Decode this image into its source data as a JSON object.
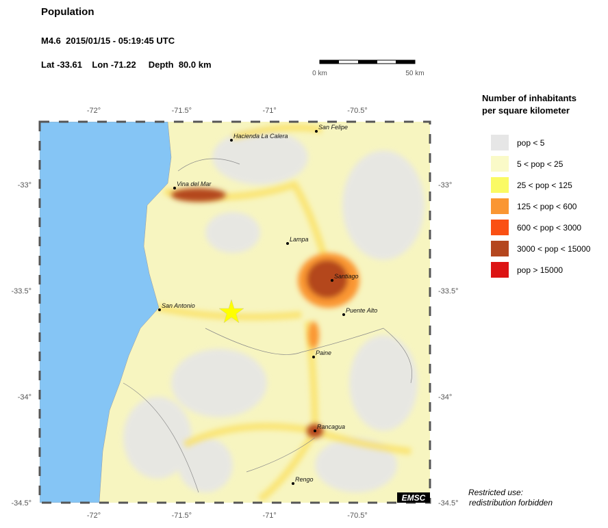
{
  "header": {
    "title": "Population",
    "event": "M4.6  2015/01/15 - 05:19:45 UTC",
    "location": "Lat -33.61    Lon -71.22     Depth  80.0 km"
  },
  "scale": {
    "start": "0 km",
    "end": "50 km"
  },
  "axes": {
    "lon": [
      {
        "value": -72,
        "label": "-72°"
      },
      {
        "value": -71.5,
        "label": "-71.5°"
      },
      {
        "value": -71,
        "label": "-71°"
      },
      {
        "value": -70.5,
        "label": "-70.5°"
      }
    ],
    "lat": [
      {
        "value": -33,
        "label": "-33°"
      },
      {
        "value": -33.5,
        "label": "-33.5°"
      },
      {
        "value": -34,
        "label": "-34°"
      },
      {
        "value": -34.5,
        "label": "-34.5°"
      }
    ]
  },
  "cities": [
    "San Felipe",
    "Hacienda La Calera",
    "Vina del Mar",
    "Lampa",
    "Santiago",
    "San Antonio",
    "Puente Alto",
    "Paine",
    "Rancagua",
    "Rengo"
  ],
  "legend": {
    "title": [
      "Number of inhabitants",
      "per square kilometer"
    ],
    "items": [
      {
        "label": "pop < 5",
        "color": "#e6e6e6"
      },
      {
        "label": "5 < pop < 25",
        "color": "#fafac8"
      },
      {
        "label": "25 < pop < 125",
        "color": "#fafa64"
      },
      {
        "label": "125 < pop < 600",
        "color": "#fa9632"
      },
      {
        "label": "600 < pop < 3000",
        "color": "#fa5014"
      },
      {
        "label": "3000 < pop < 15000",
        "color": "#b4461e"
      },
      {
        "label": "pop > 15000",
        "color": "#dc1414"
      }
    ]
  },
  "footer": {
    "logo": "EMSC",
    "notice": [
      "Restricted use:",
      "redistribution forbidden"
    ]
  }
}
